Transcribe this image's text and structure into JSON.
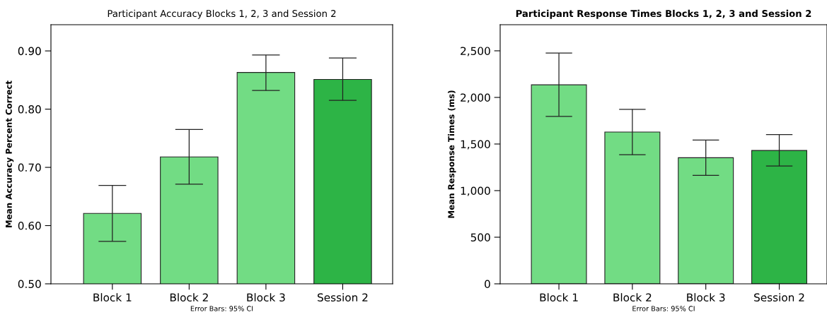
{
  "chart_data": [
    {
      "type": "bar",
      "title": "Participant Accuracy Blocks 1, 2, 3 and Session 2",
      "ylabel": "Mean Accuracy Percent Correct",
      "categories": [
        "Block 1",
        "Block 2",
        "Block 3",
        "Session 2"
      ],
      "values": [
        0.621,
        0.718,
        0.863,
        0.851
      ],
      "colors": [
        "#72dc84",
        "#72dc84",
        "#72dc84",
        "#2db446"
      ],
      "errors": [
        [
          0.573,
          0.669
        ],
        [
          0.671,
          0.765
        ],
        [
          0.832,
          0.893
        ],
        [
          0.815,
          0.888
        ]
      ],
      "ylim": [
        0.5,
        0.945
      ],
      "yticks": [
        {
          "value": 0.5,
          "label": "0.50"
        },
        {
          "value": 0.6,
          "label": "0.60"
        },
        {
          "value": 0.7,
          "label": "0.70"
        },
        {
          "value": 0.8,
          "label": "0.80"
        },
        {
          "value": 0.9,
          "label": "0.90"
        }
      ],
      "annotations": [
        "Error Bars: 95% CI"
      ],
      "grid": false,
      "legend": false
    },
    {
      "type": "bar",
      "title": "Participant Response Times Blocks 1, 2, 3 and Session 2",
      "ylabel": "Mean Response Times (ms)",
      "categories": [
        "Block 1",
        "Block 2",
        "Block 3",
        "Session 2"
      ],
      "values": [
        2135,
        1629,
        1353,
        1431
      ],
      "colors": [
        "#72dc84",
        "#72dc84",
        "#72dc84",
        "#2db446"
      ],
      "errors": [
        [
          1797,
          2476
        ],
        [
          1385,
          1872
        ],
        [
          1163,
          1542
        ],
        [
          1264,
          1602
        ]
      ],
      "ylim": [
        0,
        2780
      ],
      "yticks": [
        0,
        500,
        {
          "value": 1000,
          "label": "1,000"
        },
        {
          "value": 1500,
          "label": "1,500"
        },
        {
          "value": 2000,
          "label": "2,000"
        },
        {
          "value": 2500,
          "label": "2,500"
        }
      ],
      "annotations": [
        "Error Bars: 95% CI"
      ],
      "grid": false,
      "legend": false
    }
  ]
}
